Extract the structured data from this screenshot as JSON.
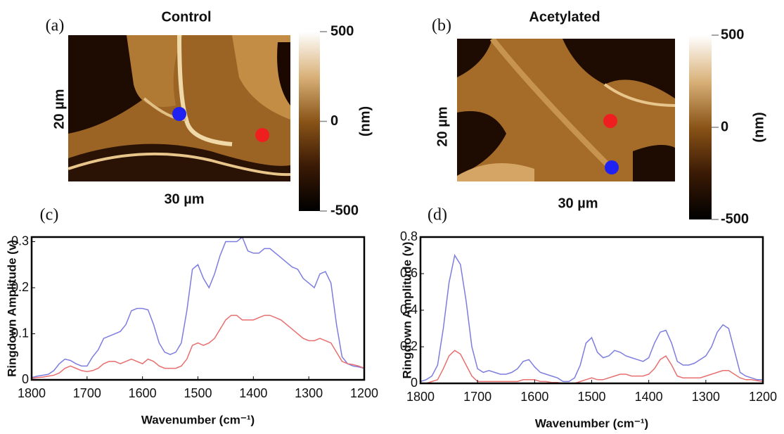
{
  "images": [
    {
      "label": "(a)",
      "title": "Control",
      "height_label": "20 µm",
      "width_label": "30 µm",
      "colorbar": {
        "lim": [
          -500,
          500
        ],
        "ticks": [
          500,
          0,
          -500
        ],
        "unit": "(nm)"
      }
    },
    {
      "label": "(b)",
      "title": "Acetylated",
      "height_label": "20 µm",
      "width_label": "30 µm",
      "colorbar": {
        "lim": [
          -500,
          500
        ],
        "ticks": [
          500,
          0,
          -500
        ],
        "unit": "(nm)"
      }
    }
  ],
  "chart_data": [
    {
      "type": "line",
      "panel_label": "(c)",
      "xlabel": "Wavenumber (cm⁻¹)",
      "ylabel": "Ringdown Amplitude (v)",
      "x": [
        1800,
        1790,
        1780,
        1770,
        1760,
        1750,
        1740,
        1730,
        1720,
        1710,
        1700,
        1690,
        1680,
        1670,
        1660,
        1650,
        1640,
        1630,
        1620,
        1610,
        1600,
        1590,
        1580,
        1570,
        1560,
        1550,
        1540,
        1530,
        1520,
        1510,
        1500,
        1490,
        1480,
        1470,
        1460,
        1450,
        1440,
        1430,
        1420,
        1410,
        1400,
        1390,
        1380,
        1370,
        1360,
        1350,
        1340,
        1330,
        1320,
        1310,
        1300,
        1290,
        1280,
        1270,
        1260,
        1250,
        1240,
        1230,
        1220,
        1210,
        1200
      ],
      "series": [
        {
          "color": "#7d7de0",
          "values": [
            0.005,
            0.008,
            0.01,
            0.012,
            0.02,
            0.035,
            0.045,
            0.042,
            0.035,
            0.03,
            0.03,
            0.05,
            0.065,
            0.09,
            0.095,
            0.1,
            0.105,
            0.12,
            0.15,
            0.155,
            0.155,
            0.152,
            0.12,
            0.08,
            0.06,
            0.055,
            0.06,
            0.08,
            0.15,
            0.24,
            0.25,
            0.22,
            0.2,
            0.23,
            0.27,
            0.3,
            0.3,
            0.3,
            0.31,
            0.28,
            0.275,
            0.275,
            0.285,
            0.285,
            0.275,
            0.265,
            0.255,
            0.245,
            0.24,
            0.22,
            0.21,
            0.2,
            0.23,
            0.235,
            0.21,
            0.12,
            0.05,
            0.035,
            0.03,
            0.028,
            0.025
          ]
        },
        {
          "color": "#e86f6f",
          "values": [
            0.003,
            0.005,
            0.006,
            0.008,
            0.01,
            0.015,
            0.025,
            0.03,
            0.025,
            0.02,
            0.018,
            0.02,
            0.025,
            0.035,
            0.04,
            0.04,
            0.035,
            0.04,
            0.045,
            0.04,
            0.035,
            0.045,
            0.04,
            0.03,
            0.025,
            0.025,
            0.025,
            0.03,
            0.045,
            0.075,
            0.08,
            0.075,
            0.08,
            0.09,
            0.11,
            0.13,
            0.14,
            0.14,
            0.13,
            0.13,
            0.13,
            0.135,
            0.14,
            0.14,
            0.135,
            0.13,
            0.12,
            0.11,
            0.1,
            0.09,
            0.085,
            0.085,
            0.09,
            0.085,
            0.08,
            0.06,
            0.04,
            0.035,
            0.033,
            0.03,
            0.025
          ]
        }
      ],
      "xlim": [
        1800,
        1200
      ],
      "xticks": [
        1800,
        1700,
        1600,
        1500,
        1400,
        1300,
        1200
      ],
      "ylim": [
        0,
        0.31
      ],
      "yticks": [
        0,
        0.1,
        0.2,
        0.3
      ]
    },
    {
      "type": "line",
      "panel_label": "(d)",
      "xlabel": "Wavenumber (cm⁻¹)",
      "ylabel": "Ringdown Amplitude (v)",
      "x": [
        1800,
        1790,
        1780,
        1770,
        1760,
        1750,
        1740,
        1730,
        1720,
        1710,
        1700,
        1690,
        1680,
        1670,
        1660,
        1650,
        1640,
        1630,
        1620,
        1610,
        1600,
        1590,
        1580,
        1570,
        1560,
        1550,
        1540,
        1530,
        1520,
        1510,
        1500,
        1490,
        1480,
        1470,
        1460,
        1450,
        1440,
        1430,
        1420,
        1410,
        1400,
        1390,
        1380,
        1370,
        1360,
        1350,
        1340,
        1330,
        1320,
        1310,
        1300,
        1290,
        1280,
        1270,
        1260,
        1250,
        1240,
        1230,
        1220,
        1210,
        1200
      ],
      "series": [
        {
          "color": "#7d7de0",
          "values": [
            0.01,
            0.02,
            0.04,
            0.1,
            0.3,
            0.55,
            0.7,
            0.65,
            0.45,
            0.2,
            0.08,
            0.06,
            0.07,
            0.06,
            0.05,
            0.05,
            0.06,
            0.08,
            0.12,
            0.13,
            0.09,
            0.06,
            0.05,
            0.04,
            0.03,
            0.01,
            0.01,
            0.03,
            0.1,
            0.22,
            0.25,
            0.17,
            0.14,
            0.15,
            0.18,
            0.17,
            0.15,
            0.14,
            0.13,
            0.12,
            0.14,
            0.22,
            0.28,
            0.29,
            0.22,
            0.12,
            0.1,
            0.1,
            0.11,
            0.13,
            0.15,
            0.2,
            0.28,
            0.32,
            0.3,
            0.18,
            0.06,
            0.04,
            0.03,
            0.02,
            0.02
          ]
        },
        {
          "color": "#e86f6f",
          "values": [
            0,
            0,
            0.01,
            0.02,
            0.08,
            0.15,
            0.18,
            0.16,
            0.1,
            0.04,
            0.01,
            0.01,
            0.01,
            0.01,
            0.01,
            0.01,
            0.01,
            0.01,
            0.02,
            0.02,
            0.02,
            0.01,
            0.01,
            0.005,
            0.005,
            0,
            0,
            0,
            0.01,
            0.02,
            0.03,
            0.02,
            0.02,
            0.03,
            0.04,
            0.05,
            0.05,
            0.04,
            0.04,
            0.04,
            0.05,
            0.08,
            0.13,
            0.15,
            0.1,
            0.04,
            0.03,
            0.03,
            0.03,
            0.03,
            0.04,
            0.05,
            0.06,
            0.07,
            0.07,
            0.05,
            0.03,
            0.02,
            0.02,
            0.015,
            0.01
          ]
        }
      ],
      "xlim": [
        1800,
        1200
      ],
      "xticks": [
        1800,
        1700,
        1600,
        1500,
        1400,
        1300,
        1200
      ],
      "ylim": [
        0,
        0.8
      ],
      "yticks": [
        0,
        0.2,
        0.4,
        0.6,
        0.8
      ]
    }
  ]
}
